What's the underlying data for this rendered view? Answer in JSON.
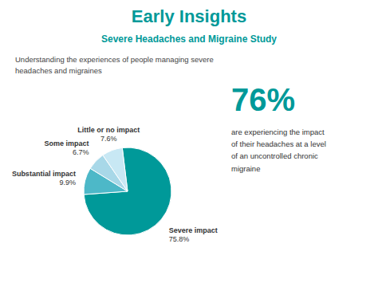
{
  "chart_data": {
    "type": "pie",
    "title": "Early Insights",
    "subtitle": "Severe Headaches and Migraine Study",
    "annotations": [
      "Understanding the experiences of people managing severe\nheadaches and migraines",
      "76%",
      "are experiencing the impact\nof their headaches at a level\nof an uncontrolled chronic\nmigraine"
    ],
    "categories": [
      "Severe impact",
      "Substantial impact",
      "Some impact",
      "Little or no impact"
    ],
    "values": [
      75.8,
      9.9,
      6.7,
      7.6
    ],
    "value_labels": [
      "75.8%",
      "9.9%",
      "6.7%",
      "7.6%"
    ],
    "data_labels": true,
    "colors": [
      "#009999",
      "#4db8c8",
      "#a8d8e8",
      "#c8e8f4"
    ]
  }
}
